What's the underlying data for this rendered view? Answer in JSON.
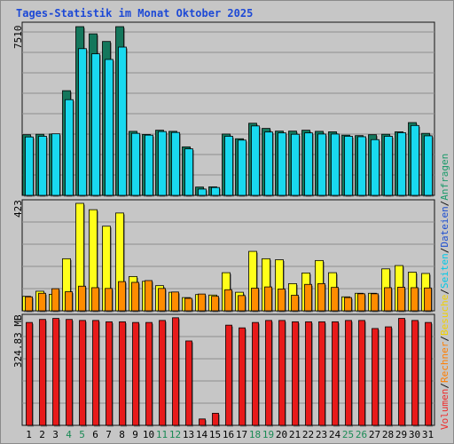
{
  "title": "Tages-Statistik im Monat Oktober 2025",
  "legend": {
    "items": [
      {
        "label": "Volumen",
        "color": "#ef2b2b"
      },
      {
        "label": "/",
        "color": "#111111"
      },
      {
        "label": "Rechner",
        "color": "#ff7e00"
      },
      {
        "label": "/",
        "color": "#111111"
      },
      {
        "label": "Besuche",
        "color": "#f0d000"
      },
      {
        "label": "/",
        "color": "#111111"
      },
      {
        "label": "Seiten",
        "color": "#00c8e8"
      },
      {
        "label": "/",
        "color": "#111111"
      },
      {
        "label": "Dateien",
        "color": "#1e4fd0"
      },
      {
        "label": "/",
        "color": "#111111"
      },
      {
        "label": "Anfragen",
        "color": "#1a9a6a"
      }
    ]
  },
  "colors": {
    "background": "#c6c6c6",
    "anfragen": "#14775c",
    "dateien": "#1e4fd0",
    "seiten": "#19d9ef",
    "besuche": "#ffff1a",
    "rechner": "#ff8c00",
    "volumen": "#e81a1a",
    "weekend_label": "#1a8a55",
    "weekday_label": "#000000"
  },
  "chart_data": [
    {
      "type": "bar",
      "panel": "top",
      "ylabel": "7510",
      "ymax": 7510,
      "categories": [
        "1",
        "2",
        "3",
        "4",
        "5",
        "6",
        "7",
        "8",
        "9",
        "10",
        "11",
        "12",
        "13",
        "14",
        "15",
        "16",
        "17",
        "18",
        "19",
        "20",
        "21",
        "22",
        "23",
        "24",
        "25",
        "26",
        "27",
        "28",
        "29",
        "30",
        "31"
      ],
      "weekend": [
        "4",
        "5",
        "11",
        "12",
        "18",
        "19",
        "25",
        "26"
      ],
      "series": [
        {
          "name": "Anfragen",
          "values": [
            2700,
            2720,
            2730,
            4660,
            7510,
            7190,
            6850,
            7510,
            2850,
            2710,
            2900,
            2850,
            2160,
            370,
            380,
            2730,
            2520,
            3210,
            2980,
            2860,
            2860,
            2900,
            2850,
            2830,
            2680,
            2660,
            2700,
            2720,
            2830,
            3240,
            2760
          ]
        },
        {
          "name": "Seiten",
          "values": [
            2600,
            2630,
            2740,
            4260,
            6530,
            6300,
            6050,
            6600,
            2760,
            2680,
            2840,
            2800,
            2070,
            280,
            350,
            2630,
            2460,
            3090,
            2820,
            2780,
            2720,
            2780,
            2730,
            2730,
            2630,
            2610,
            2480,
            2630,
            2790,
            3110,
            2650
          ]
        }
      ]
    },
    {
      "type": "bar",
      "panel": "middle",
      "ylabel": "423",
      "ymax": 423,
      "categories": [
        "1",
        "2",
        "3",
        "4",
        "5",
        "6",
        "7",
        "8",
        "9",
        "10",
        "11",
        "12",
        "13",
        "14",
        "15",
        "16",
        "17",
        "18",
        "19",
        "20",
        "21",
        "22",
        "23",
        "24",
        "25",
        "26",
        "27",
        "28",
        "29",
        "30",
        "31"
      ],
      "series": [
        {
          "name": "Besuche",
          "values": [
            57,
            77,
            65,
            205,
            423,
            398,
            333,
            385,
            135,
            116,
            99,
            73,
            52,
            64,
            62,
            150,
            73,
            234,
            205,
            201,
            107,
            149,
            198,
            150,
            55,
            69,
            69,
            165,
            178,
            152,
            147
          ]
        },
        {
          "name": "Rechner",
          "values": [
            55,
            69,
            87,
            75,
            97,
            91,
            88,
            115,
            112,
            119,
            88,
            74,
            49,
            66,
            57,
            83,
            60,
            89,
            94,
            86,
            61,
            104,
            107,
            92,
            52,
            67,
            67,
            91,
            93,
            91,
            90
          ]
        }
      ]
    },
    {
      "type": "bar",
      "panel": "bottom",
      "ylabel": "324.83 MB",
      "ymax": 324.83,
      "unit": "MB",
      "categories": [
        "1",
        "2",
        "3",
        "4",
        "5",
        "6",
        "7",
        "8",
        "9",
        "10",
        "11",
        "12",
        "13",
        "14",
        "15",
        "16",
        "17",
        "18",
        "19",
        "20",
        "21",
        "22",
        "23",
        "24",
        "25",
        "26",
        "27",
        "28",
        "29",
        "30",
        "31"
      ],
      "series": [
        {
          "name": "Volumen",
          "values": [
            306,
            315,
            318,
            315,
            312,
            312,
            308,
            308,
            306,
            306,
            312,
            320,
            251,
            19,
            36,
            298,
            290,
            306,
            312,
            312,
            308,
            308,
            308,
            308,
            312,
            312,
            288,
            293,
            318,
            312,
            306
          ]
        }
      ]
    }
  ]
}
